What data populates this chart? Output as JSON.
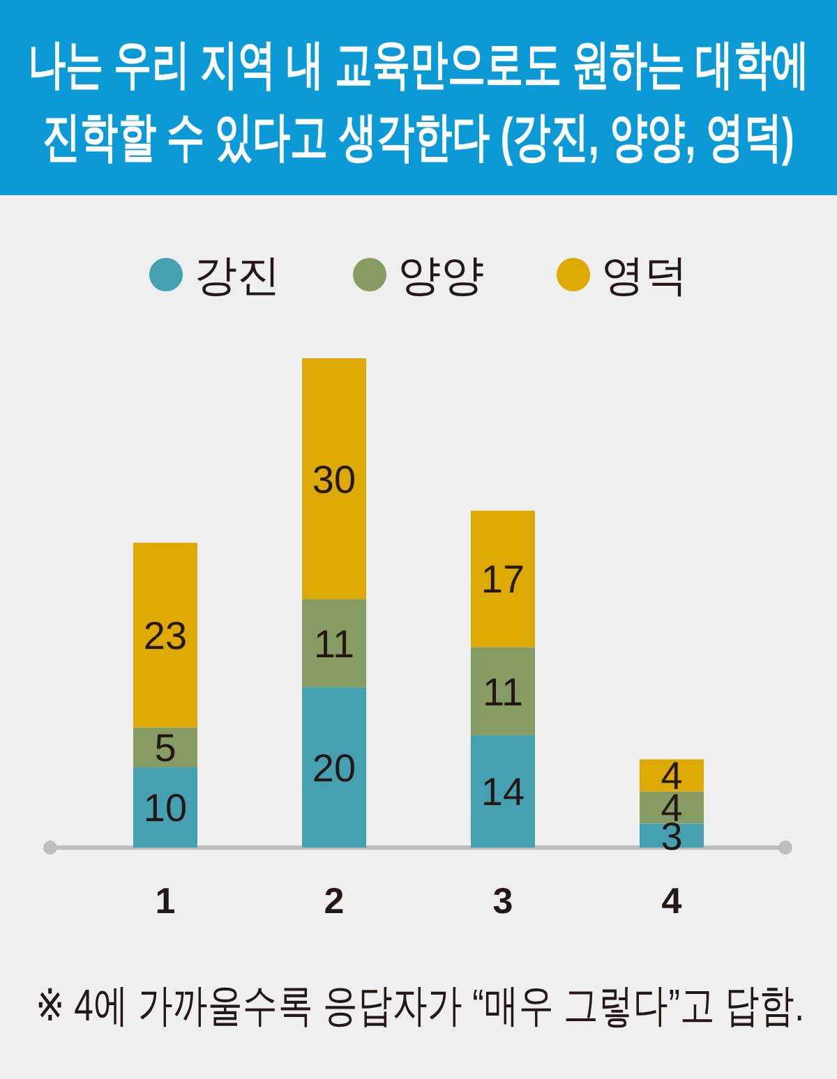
{
  "chart_data": {
    "type": "bar",
    "title": "나는 우리 지역 내 교육만으로도 원하는 대학에 진학할 수 있다고 생각한다 (강진, 양양, 영덕)",
    "categories": [
      "1",
      "2",
      "3",
      "4"
    ],
    "series": [
      {
        "name": "강진",
        "color": "#45a0b1",
        "values": [
          10,
          20,
          14,
          3
        ]
      },
      {
        "name": "양양",
        "color": "#879c63",
        "values": [
          5,
          11,
          11,
          4
        ]
      },
      {
        "name": "영덕",
        "color": "#dea900",
        "values": [
          23,
          30,
          17,
          4
        ]
      }
    ],
    "stacked": true,
    "data_labels": true,
    "legend": "top",
    "annotations": [
      "※ 4에 가까울수록 응답자가 “매우 그렇다”고 답함."
    ]
  }
}
